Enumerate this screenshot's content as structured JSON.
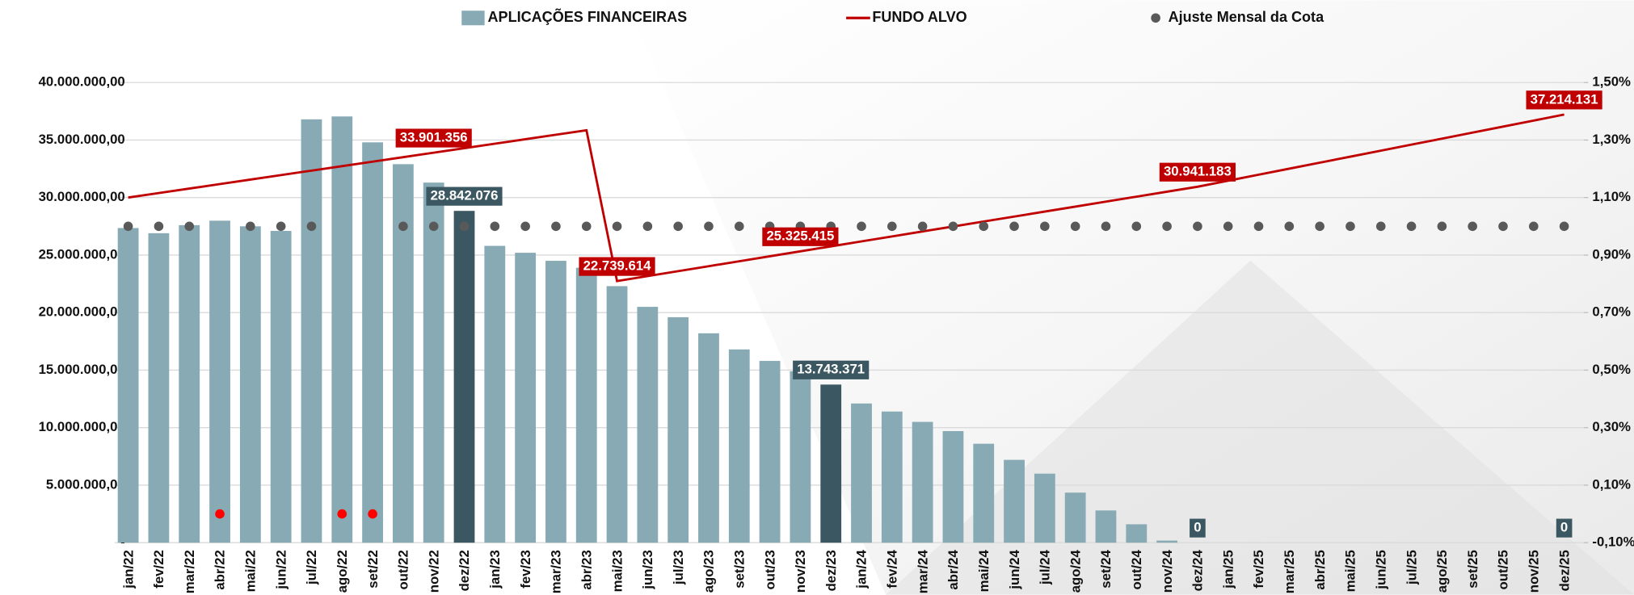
{
  "chart_data": {
    "type": "bar",
    "categories": [
      "jan/22",
      "fev/22",
      "mar/22",
      "abr/22",
      "mai/22",
      "jun/22",
      "jul/22",
      "ago/22",
      "set/22",
      "out/22",
      "nov/22",
      "dez/22",
      "jan/23",
      "fev/23",
      "mar/23",
      "abr/23",
      "mai/23",
      "jun/23",
      "jul/23",
      "ago/23",
      "set/23",
      "out/23",
      "nov/23",
      "dez/23",
      "jan/24",
      "fev/24",
      "mar/24",
      "abr/24",
      "mai/24",
      "jun/24",
      "jul/24",
      "ago/24",
      "set/24",
      "out/24",
      "nov/24",
      "dez/24",
      "jan/25",
      "fev/25",
      "mar/25",
      "abr/25",
      "mai/25",
      "jun/25",
      "jul/25",
      "ago/25",
      "set/25",
      "out/25",
      "nov/25",
      "dez/25"
    ],
    "series": [
      {
        "name": "APLICAÇÕES FINANCEIRAS",
        "type": "bar",
        "color": "#87aab5",
        "colors": [
          "#87aab5",
          "#87aab5",
          "#87aab5",
          "#87aab5",
          "#87aab5",
          "#87aab5",
          "#87aab5",
          "#87aab5",
          "#87aab5",
          "#87aab5",
          "#87aab5",
          "#3b5862",
          "#87aab5",
          "#87aab5",
          "#87aab5",
          "#87aab5",
          "#87aab5",
          "#87aab5",
          "#87aab5",
          "#87aab5",
          "#87aab5",
          "#87aab5",
          "#87aab5",
          "#3b5862",
          "#87aab5",
          "#87aab5",
          "#87aab5",
          "#87aab5",
          "#87aab5",
          "#87aab5",
          "#87aab5",
          "#87aab5",
          "#87aab5",
          "#87aab5",
          "#87aab5",
          "#3b5862",
          "#87aab5",
          "#87aab5",
          "#87aab5",
          "#87aab5",
          "#87aab5",
          "#87aab5",
          "#87aab5",
          "#87aab5",
          "#87aab5",
          "#87aab5",
          "#87aab5",
          "#3b5862"
        ],
        "values": [
          27350000,
          26900000,
          27600000,
          27990000,
          27500000,
          27100000,
          36800000,
          37050000,
          34800000,
          32900000,
          31300000,
          28842076,
          25800000,
          25200000,
          24500000,
          23900000,
          22300000,
          20500000,
          19600000,
          18200000,
          16800000,
          15800000,
          14900000,
          13743371,
          12100000,
          11400000,
          10500000,
          9700000,
          8600000,
          7200000,
          6000000,
          4350000,
          2800000,
          1600000,
          180000,
          0,
          0,
          0,
          0,
          0,
          0,
          0,
          0,
          0,
          0,
          0,
          0,
          0
        ],
        "value_labels": [
          null,
          null,
          null,
          null,
          null,
          null,
          null,
          null,
          null,
          null,
          null,
          "28.842.076",
          null,
          null,
          null,
          null,
          null,
          null,
          null,
          null,
          null,
          null,
          null,
          "13.743.371",
          null,
          null,
          null,
          null,
          null,
          null,
          null,
          null,
          null,
          null,
          null,
          "0",
          null,
          null,
          null,
          null,
          null,
          null,
          null,
          null,
          null,
          null,
          null,
          "0"
        ]
      },
      {
        "name": "FUNDO ALVO",
        "type": "line",
        "color": "#c00000",
        "values": [
          30001000,
          30391000,
          30781000,
          31171000,
          31561000,
          31951000,
          32341000,
          32731000,
          33121000,
          33511000,
          33901356,
          34291000,
          34681000,
          35071000,
          35461000,
          35851000,
          22739614,
          23171000,
          23602000,
          24033000,
          24464000,
          24894000,
          25325415,
          25757000,
          26189000,
          26621000,
          27053000,
          27485000,
          27917000,
          28349000,
          28781000,
          29213000,
          29645000,
          30077000,
          30509000,
          30941183,
          31464000,
          31987000,
          32509000,
          33032000,
          33555000,
          34078000,
          34600000,
          35123000,
          35646000,
          36169000,
          36691000,
          37214131
        ],
        "value_labels": [
          null,
          null,
          null,
          null,
          null,
          null,
          null,
          null,
          null,
          null,
          "33.901.356",
          null,
          null,
          null,
          null,
          null,
          "22.739.614",
          null,
          null,
          null,
          null,
          null,
          "25.325.415",
          null,
          null,
          null,
          null,
          null,
          null,
          null,
          null,
          null,
          null,
          null,
          null,
          "30.941.183",
          null,
          null,
          null,
          null,
          null,
          null,
          null,
          null,
          null,
          null,
          null,
          "37.214.131"
        ]
      },
      {
        "name": "Ajuste Mensal da Cota",
        "type": "scatter",
        "axis": "y2",
        "color": "#595959",
        "colors": [
          "#595959",
          "#595959",
          "#595959",
          "#ff0000",
          "#595959",
          "#595959",
          "#595959",
          "#ff0000",
          "#ff0000",
          "#595959",
          "#595959",
          "#595959",
          "#595959",
          "#595959",
          "#595959",
          "#595959",
          "#595959",
          "#595959",
          "#595959",
          "#595959",
          "#595959",
          "#595959",
          "#595959",
          "#595959",
          "#595959",
          "#595959",
          "#595959",
          "#595959",
          "#595959",
          "#595959",
          "#595959",
          "#595959",
          "#595959",
          "#595959",
          "#595959",
          "#595959",
          "#595959",
          "#595959",
          "#595959",
          "#595959",
          "#595959",
          "#595959",
          "#595959",
          "#595959",
          "#595959",
          "#595959",
          "#595959",
          "#595959"
        ],
        "values": [
          1.0,
          1.0,
          1.0,
          0.0,
          1.0,
          1.0,
          1.0,
          0.0,
          0.0,
          1.0,
          1.0,
          1.0,
          1.0,
          1.0,
          1.0,
          1.0,
          1.0,
          1.0,
          1.0,
          1.0,
          1.0,
          1.0,
          1.0,
          1.0,
          1.0,
          1.0,
          1.0,
          1.0,
          1.0,
          1.0,
          1.0,
          1.0,
          1.0,
          1.0,
          1.0,
          1.0,
          1.0,
          1.0,
          1.0,
          1.0,
          1.0,
          1.0,
          1.0,
          1.0,
          1.0,
          1.0,
          1.0,
          1.0
        ]
      }
    ],
    "ylim": [
      0,
      40000000
    ],
    "yticks": [
      {
        "value": 0,
        "label": "-"
      },
      {
        "value": 5000000,
        "label": "5.000.000,00"
      },
      {
        "value": 10000000,
        "label": "10.000.000,00"
      },
      {
        "value": 15000000,
        "label": "15.000.000,00"
      },
      {
        "value": 20000000,
        "label": "20.000.000,00"
      },
      {
        "value": 25000000,
        "label": "25.000.000,00"
      },
      {
        "value": 30000000,
        "label": "30.000.000,00"
      },
      {
        "value": 35000000,
        "label": "35.000.000,00"
      },
      {
        "value": 40000000,
        "label": "40.000.000,00"
      }
    ],
    "y2lim": [
      -0.1,
      1.5
    ],
    "y2ticks": [
      {
        "value": -0.1,
        "label": "-0,10%"
      },
      {
        "value": 0.1,
        "label": "0,10%"
      },
      {
        "value": 0.3,
        "label": "0,30%"
      },
      {
        "value": 0.5,
        "label": "0,50%"
      },
      {
        "value": 0.7,
        "label": "0,70%"
      },
      {
        "value": 0.9,
        "label": "0,90%"
      },
      {
        "value": 1.1,
        "label": "1,10%"
      },
      {
        "value": 1.3,
        "label": "1,30%"
      },
      {
        "value": 1.5,
        "label": "1,50%"
      }
    ],
    "grid": true,
    "legend": "top"
  }
}
